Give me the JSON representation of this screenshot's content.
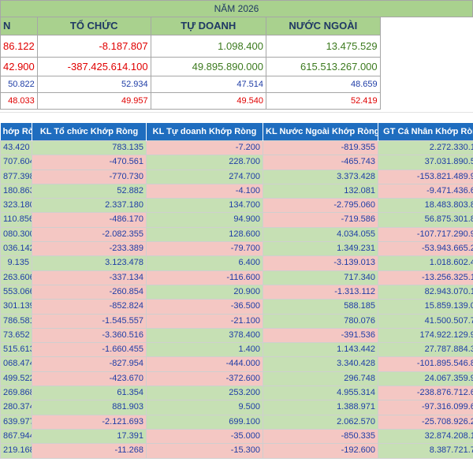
{
  "summary": {
    "year_title": "NĂM 2026",
    "headers": [
      "N",
      "TỔ CHỨC",
      "TỰ DOANH",
      "NƯỚC NGOÀI"
    ],
    "rows": [
      [
        "86.122",
        "-8.187.807",
        "1.098.400",
        "13.475.529"
      ],
      [
        "42.900",
        "-387.425.614.100",
        "49.895.890.000",
        "615.513.267.000"
      ],
      [
        "50.822",
        "52.934",
        "47.514",
        "48.659"
      ],
      [
        "48.033",
        "49.957",
        "49.540",
        "52.419"
      ]
    ]
  },
  "table": {
    "headers": [
      "hớp Ròng",
      "KL Tổ chức Khớp Ròng",
      "KL Tự doanh Khớp Ròng",
      "KL Nước Ngoài Khớp Ròng",
      "GT Cá Nhân Khớp Ròn"
    ],
    "rows": [
      [
        "43.420",
        "783.135",
        "-7.200",
        "-819.355",
        "2.272.330.10"
      ],
      [
        "707.604",
        "-470.561",
        "228.700",
        "-465.743",
        "37.031.890.50"
      ],
      [
        "877.398",
        "-770.730",
        "274.700",
        "3.373.428",
        "-153.821.489.90"
      ],
      [
        "180.863",
        "52.882",
        "-4.100",
        "132.081",
        "-9.471.436.60"
      ],
      [
        "323.180",
        "2.337.180",
        "134.700",
        "-2.795.060",
        "18.483.803.80"
      ],
      [
        "110.856",
        "-486.170",
        "94.900",
        "-719.586",
        "56.875.301.80"
      ],
      [
        "080.300",
        "-2.082.355",
        "128.600",
        "4.034.055",
        "-107.717.290.90"
      ],
      [
        "036.142",
        "-233.389",
        "-79.700",
        "1.349.231",
        "-53.943.665.20"
      ],
      [
        "9.135",
        "3.123.478",
        "6.400",
        "-3.139.013",
        "1.018.602.49"
      ],
      [
        "263.606",
        "-337.134",
        "-116.600",
        "717.340",
        "-13.256.325.10"
      ],
      [
        "553.066",
        "-260.854",
        "20.900",
        "-1.313.112",
        "82.943.070.10"
      ],
      [
        "301.139",
        "-852.824",
        "-36.500",
        "588.185",
        "15.859.139.00"
      ],
      [
        "786.581",
        "-1.545.557",
        "-21.100",
        "780.076",
        "41.500.507.70"
      ],
      [
        "73.652",
        "-3.360.516",
        "378.400",
        "-391.536",
        "174.922.129.90"
      ],
      [
        "515.613",
        "-1.660.455",
        "1.400",
        "1.143.442",
        "27.787.884.30"
      ],
      [
        "068.474",
        "-827.954",
        "-444.000",
        "3.340.428",
        "-101.895.546.80"
      ],
      [
        "499.522",
        "-423.670",
        "-372.600",
        "296.748",
        "24.067.359.95"
      ],
      [
        "269.868",
        "61.354",
        "253.200",
        "4.955.314",
        "-238.876.712.65"
      ],
      [
        "280.374",
        "881.903",
        "9.500",
        "1.388.971",
        "-97.316.099.60"
      ],
      [
        "639.977",
        "-2.121.693",
        "699.100",
        "2.062.570",
        "-25.708.926.20"
      ],
      [
        "867.944",
        "17.391",
        "-35.000",
        "-850.335",
        "32.874.208.15"
      ],
      [
        "219.168",
        "-11.268",
        "-15.300",
        "-192.600",
        "8.387.721.75"
      ]
    ]
  }
}
